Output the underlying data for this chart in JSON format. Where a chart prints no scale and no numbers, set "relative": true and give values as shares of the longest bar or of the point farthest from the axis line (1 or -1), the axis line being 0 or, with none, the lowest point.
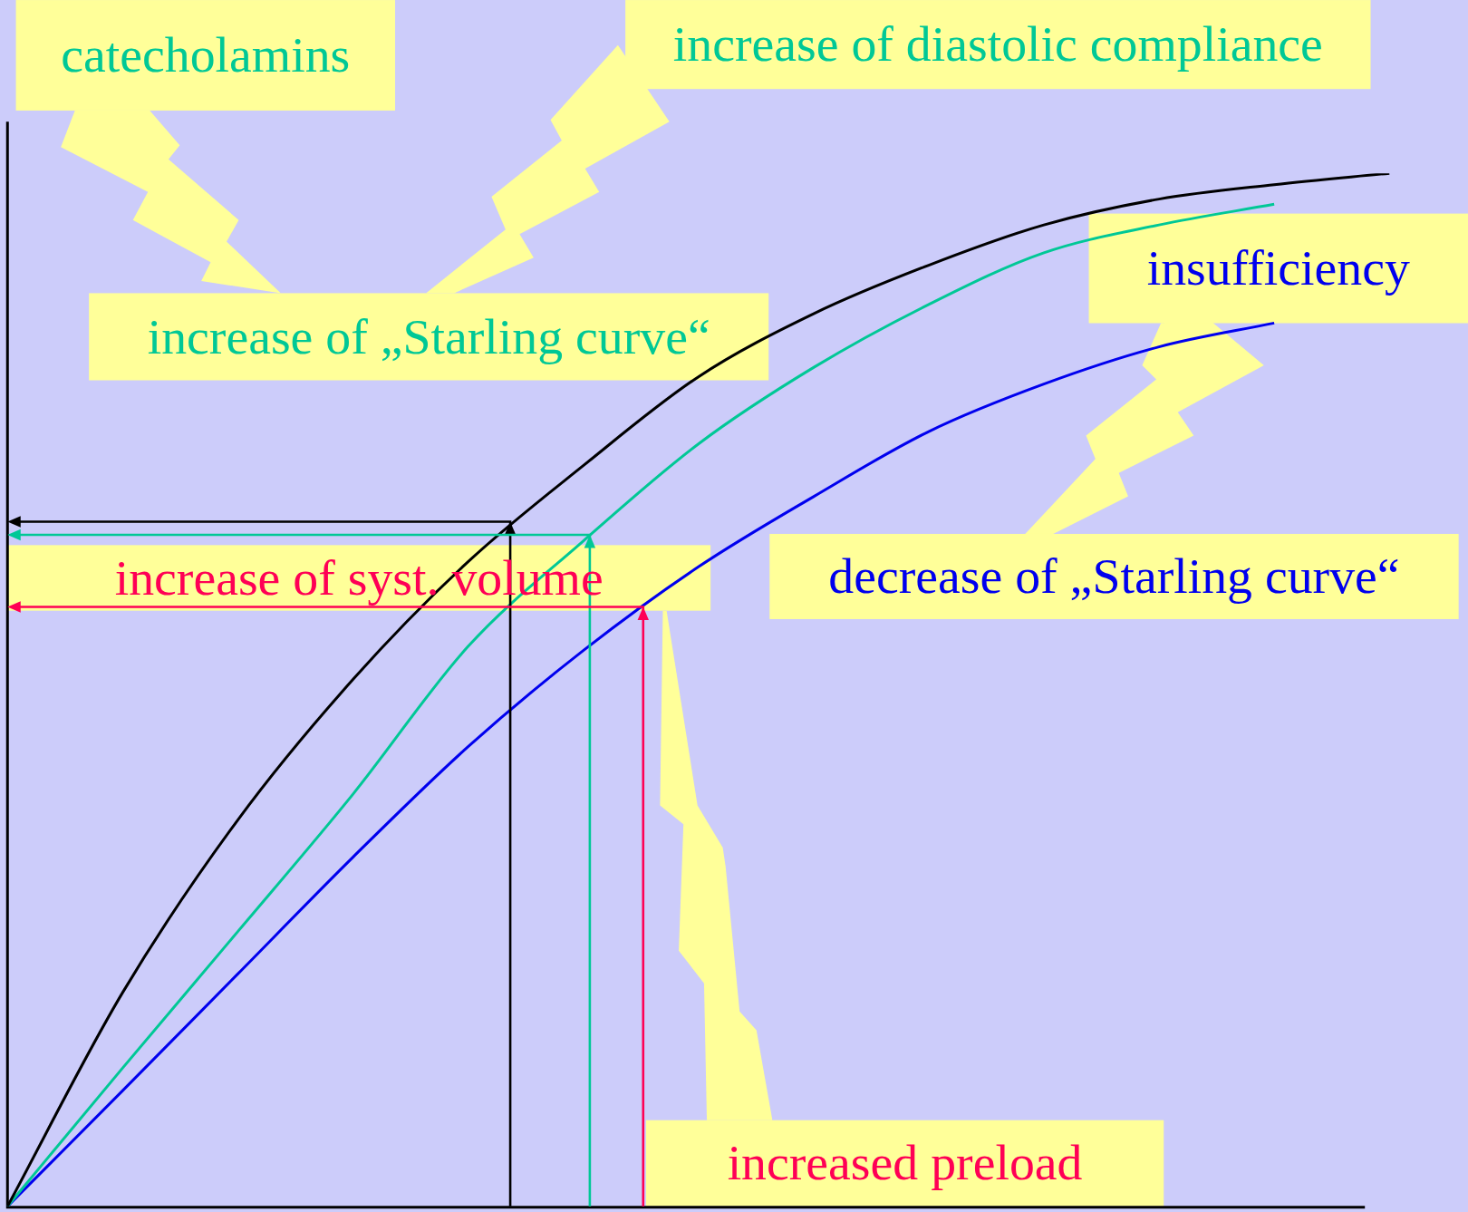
{
  "chart_data": {
    "type": "line",
    "relative": true,
    "marker": "none",
    "line_style": "solid",
    "categories": [
      null,
      null,
      null,
      null,
      null,
      null,
      null,
      null,
      null,
      null,
      null,
      null,
      null
    ],
    "series": [
      {
        "color": "#000000",
        "values": [
          0,
          0.207,
          0.374,
          0.51,
          0.624,
          0.717,
          0.803,
          0.864,
          0.911,
          0.95,
          0.975,
          0.989,
          1
        ]
      },
      {
        "color": "#00c896",
        "values": [
          0,
          0.134,
          0.266,
          0.399,
          0.542,
          0.644,
          0.738,
          0.812,
          0.873,
          0.923,
          0.95,
          0.97,
          null
        ]
      },
      {
        "color": "#0000ee",
        "values": [
          0,
          0.112,
          0.225,
          0.338,
          0.445,
          0.538,
          0.619,
          0.687,
          0.75,
          0.796,
          0.832,
          0.855,
          null
        ]
      }
    ],
    "annotations": [
      "catecholamins",
      "increase of diastolic compliance",
      "increase of „Starling curve“",
      "insufficiency",
      "increase of syst. volume",
      "decrease of „Starling curve“",
      "increased preload"
    ]
  }
}
